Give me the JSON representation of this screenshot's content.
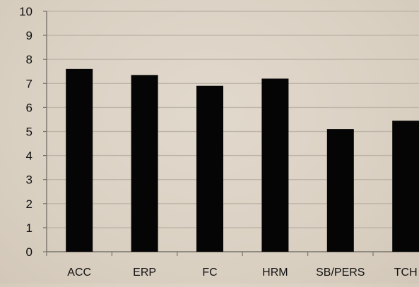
{
  "chart_data": {
    "type": "bar",
    "categories": [
      "ACC",
      "ERP",
      "FC",
      "HRM",
      "SB/PERS",
      "TCH"
    ],
    "values": [
      7.6,
      7.35,
      6.9,
      7.2,
      5.1,
      5.45
    ],
    "yticks": [
      "0",
      "1",
      "2",
      "3",
      "4",
      "5",
      "6",
      "7",
      "8",
      "9",
      "10"
    ],
    "ylim": [
      0,
      10
    ],
    "title": "",
    "xlabel": "",
    "ylabel": "",
    "grid": true,
    "legend": "none"
  },
  "colors": {
    "bar": "#050505",
    "grid": "#bfb6aa",
    "axis": "#7a746c",
    "text": "#111111"
  }
}
